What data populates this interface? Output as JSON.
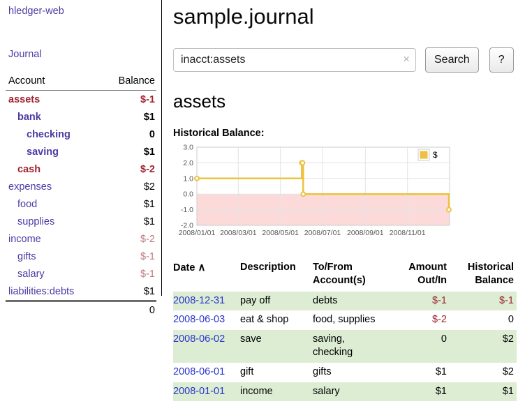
{
  "colors": {
    "link_purple": "#4a3ba5",
    "negative_strong": "#9f2431",
    "negative_muted": "#bd7b80",
    "date_link_blue": "#2a35cc",
    "row_stripe_green": "#dcedd3",
    "chart_line_gold": "#edc240",
    "chart_negative_fill": "#fcdada"
  },
  "sidebar": {
    "app_title": "hledger-web",
    "journal_link": "Journal",
    "accounts_table": {
      "header": {
        "account": "Account",
        "balance": "Balance"
      },
      "rows": [
        {
          "name": "assets",
          "balance": "$-1",
          "indent": 0,
          "bold": true,
          "name_style": "negative",
          "balance_style": "negative"
        },
        {
          "name": "bank",
          "balance": "$1",
          "indent": 1,
          "bold": true,
          "name_style": "link",
          "balance_style": "normal"
        },
        {
          "name": "checking",
          "balance": "0",
          "indent": 2,
          "bold": true,
          "name_style": "link",
          "balance_style": "normal"
        },
        {
          "name": "saving",
          "balance": "$1",
          "indent": 2,
          "bold": true,
          "name_style": "link",
          "balance_style": "normal"
        },
        {
          "name": "cash",
          "balance": "$-2",
          "indent": 1,
          "bold": true,
          "name_style": "negative",
          "balance_style": "negative"
        },
        {
          "name": "expenses",
          "balance": "$2",
          "indent": 0,
          "bold": false,
          "name_style": "link",
          "balance_style": "normal"
        },
        {
          "name": "food",
          "balance": "$1",
          "indent": 1,
          "bold": false,
          "name_style": "link",
          "balance_style": "normal"
        },
        {
          "name": "supplies",
          "balance": "$1",
          "indent": 1,
          "bold": false,
          "name_style": "link",
          "balance_style": "normal"
        },
        {
          "name": "income",
          "balance": "$-2",
          "indent": 0,
          "bold": false,
          "name_style": "link",
          "balance_style": "negative_muted"
        },
        {
          "name": "gifts",
          "balance": "$-1",
          "indent": 1,
          "bold": false,
          "name_style": "link",
          "balance_style": "negative_muted"
        },
        {
          "name": "salary",
          "balance": "$-1",
          "indent": 1,
          "bold": false,
          "name_style": "link",
          "balance_style": "negative_muted"
        },
        {
          "name": "liabilities:debts",
          "balance": "$1",
          "indent": 0,
          "bold": false,
          "name_style": "link",
          "balance_style": "normal"
        }
      ],
      "total": "0"
    }
  },
  "main": {
    "page_title": "sample.journal",
    "search": {
      "value": "inacct:assets",
      "clear_icon": "×",
      "search_button": "Search",
      "help_button": "?"
    },
    "account_heading": "assets",
    "chart_heading": "Historical Balance:"
  },
  "chart_data": {
    "type": "line",
    "style": "step",
    "title": "Historical Balance",
    "x_range": [
      "2008-01-01",
      "2009-01-01"
    ],
    "y_range": [
      -2,
      3
    ],
    "y_ticks": [
      "3.0",
      "2.0",
      "1.0",
      "0.0",
      "-1.0",
      "-2.0"
    ],
    "x_ticks": [
      {
        "date": "2008-01-01",
        "label": "2008/01/01"
      },
      {
        "date": "2008-03-01",
        "label": "2008/03/01"
      },
      {
        "date": "2008-05-01",
        "label": "2008/05/01"
      },
      {
        "date": "2008-07-01",
        "label": "2008/07/01"
      },
      {
        "date": "2008-09-01",
        "label": "2008/09/01"
      },
      {
        "date": "2008-11-01",
        "label": "2008/11/01"
      }
    ],
    "legend": {
      "label": "$",
      "position": "top-right"
    },
    "grid": true,
    "negative_region_shaded": true,
    "series": [
      {
        "name": "$",
        "points": [
          {
            "x": "2008-01-01",
            "y": 1
          },
          {
            "x": "2008-06-01",
            "y": 2
          },
          {
            "x": "2008-06-02",
            "y": 2
          },
          {
            "x": "2008-06-03",
            "y": 0
          },
          {
            "x": "2008-12-31",
            "y": -1
          }
        ]
      }
    ]
  },
  "register": {
    "headers": {
      "date": "Date",
      "description": "Description",
      "accounts": "To/From Account(s)",
      "amount": "Amount Out/In",
      "balance": "Historical Balance"
    },
    "sort_icon": "∧",
    "rows": [
      {
        "date": "2008-12-31",
        "description": "pay off",
        "accounts": "debts",
        "amount": "$-1",
        "amount_negative": true,
        "balance": "$-1",
        "balance_negative": true
      },
      {
        "date": "2008-06-03",
        "description": "eat & shop",
        "accounts": "food, supplies",
        "amount": "$-2",
        "amount_negative": true,
        "balance": "0",
        "balance_negative": false
      },
      {
        "date": "2008-06-02",
        "description": "save",
        "accounts": "saving, checking",
        "amount": "0",
        "amount_negative": false,
        "balance": "$2",
        "balance_negative": false
      },
      {
        "date": "2008-06-01",
        "description": "gift",
        "accounts": "gifts",
        "amount": "$1",
        "amount_negative": false,
        "balance": "$2",
        "balance_negative": false
      },
      {
        "date": "2008-01-01",
        "description": "income",
        "accounts": "salary",
        "amount": "$1",
        "amount_negative": false,
        "balance": "$1",
        "balance_negative": false
      }
    ]
  }
}
